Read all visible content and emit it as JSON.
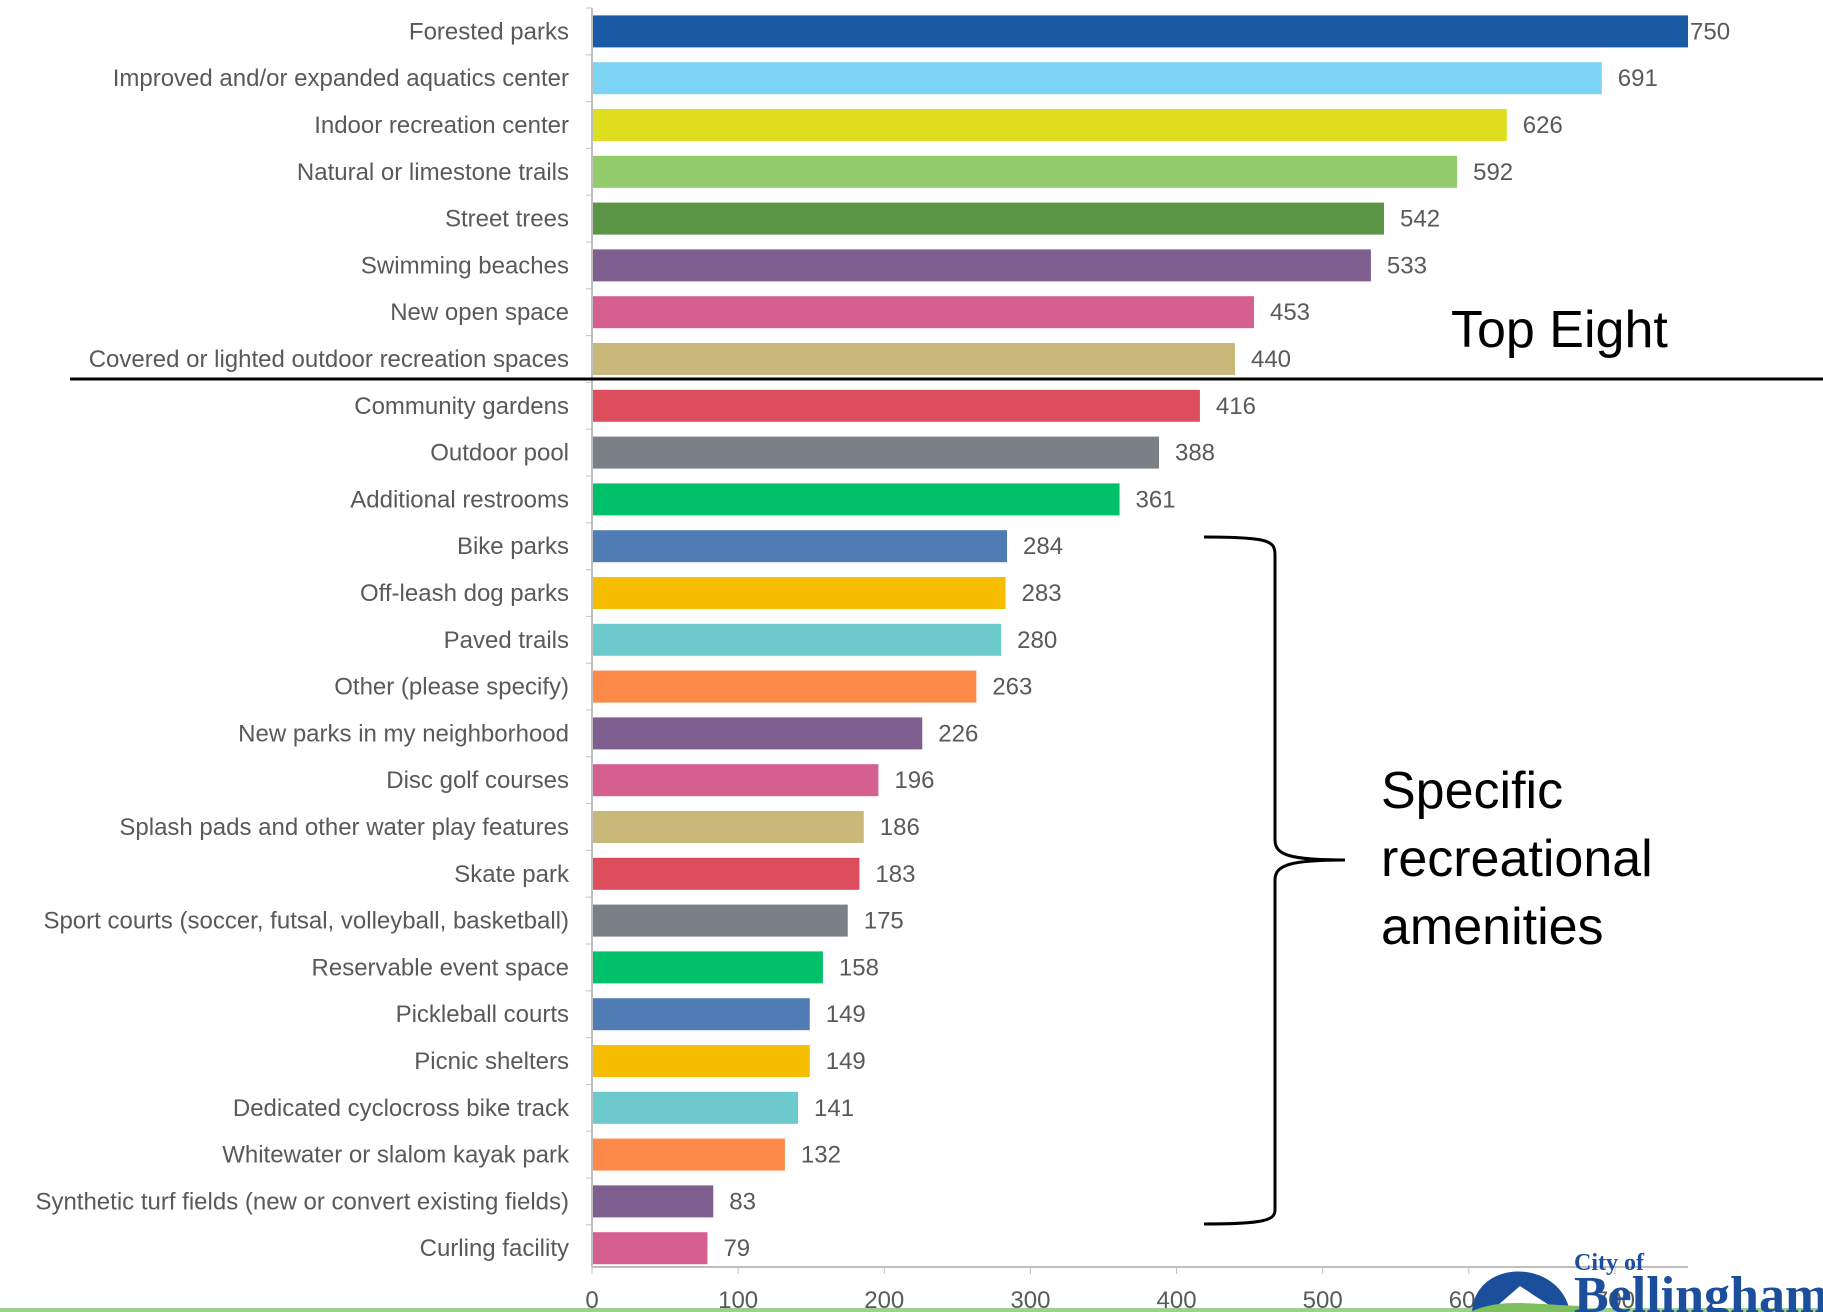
{
  "chart_data": {
    "type": "bar",
    "orientation": "horizontal",
    "categories": [
      "Forested parks",
      "Improved and/or expanded aquatics center",
      "Indoor recreation center",
      "Natural or limestone trails",
      "Street trees",
      "Swimming beaches",
      "New open space",
      "Covered or lighted outdoor recreation spaces",
      "Community gardens",
      "Outdoor pool",
      "Additional restrooms",
      "Bike parks",
      "Off-leash dog parks",
      "Paved trails",
      "Other (please specify)",
      "New parks in my neighborhood",
      "Disc golf courses",
      "Splash pads and other water play features",
      "Skate park",
      "Sport courts (soccer, futsal, volleyball, basketball)",
      "Reservable event space",
      "Pickleball courts",
      "Picnic shelters",
      "Dedicated cyclocross bike track",
      "Whitewater or slalom kayak park",
      "Synthetic turf fields (new or convert existing fields)",
      "Curling facility"
    ],
    "values": [
      750,
      691,
      626,
      592,
      542,
      533,
      453,
      440,
      416,
      388,
      361,
      284,
      283,
      280,
      263,
      226,
      196,
      186,
      183,
      175,
      158,
      149,
      149,
      141,
      132,
      83,
      79
    ],
    "colors": [
      "#1a5aa5",
      "#7dd3f4",
      "#dede1e",
      "#92cc6a",
      "#5a9444",
      "#7e5f90",
      "#d55f8f",
      "#c8b87a",
      "#dc4e5c",
      "#7b8086",
      "#00c06a",
      "#4f7cb5",
      "#f7bd00",
      "#6ccacc",
      "#fe8a4a",
      "#7e5f90",
      "#d55f8f",
      "#c8b87a",
      "#dc4e5c",
      "#7b8086",
      "#00c06a",
      "#4f7cb5",
      "#f7bd00",
      "#6ccacc",
      "#fe8a4a",
      "#7e5f90",
      "#d55f8f"
    ],
    "x_ticks": [
      0,
      100,
      200,
      300,
      400,
      500,
      600,
      700
    ],
    "xlim": [
      0,
      750
    ],
    "grid": false,
    "annotations": [
      "Top Eight",
      "Specific recreational amenities"
    ]
  },
  "annotations": {
    "top_eight": "Top Eight",
    "specific_lines": [
      "Specific",
      "recreational",
      "amenities"
    ]
  },
  "logo": {
    "small_text": "City of",
    "big_text": "Bellingham"
  }
}
